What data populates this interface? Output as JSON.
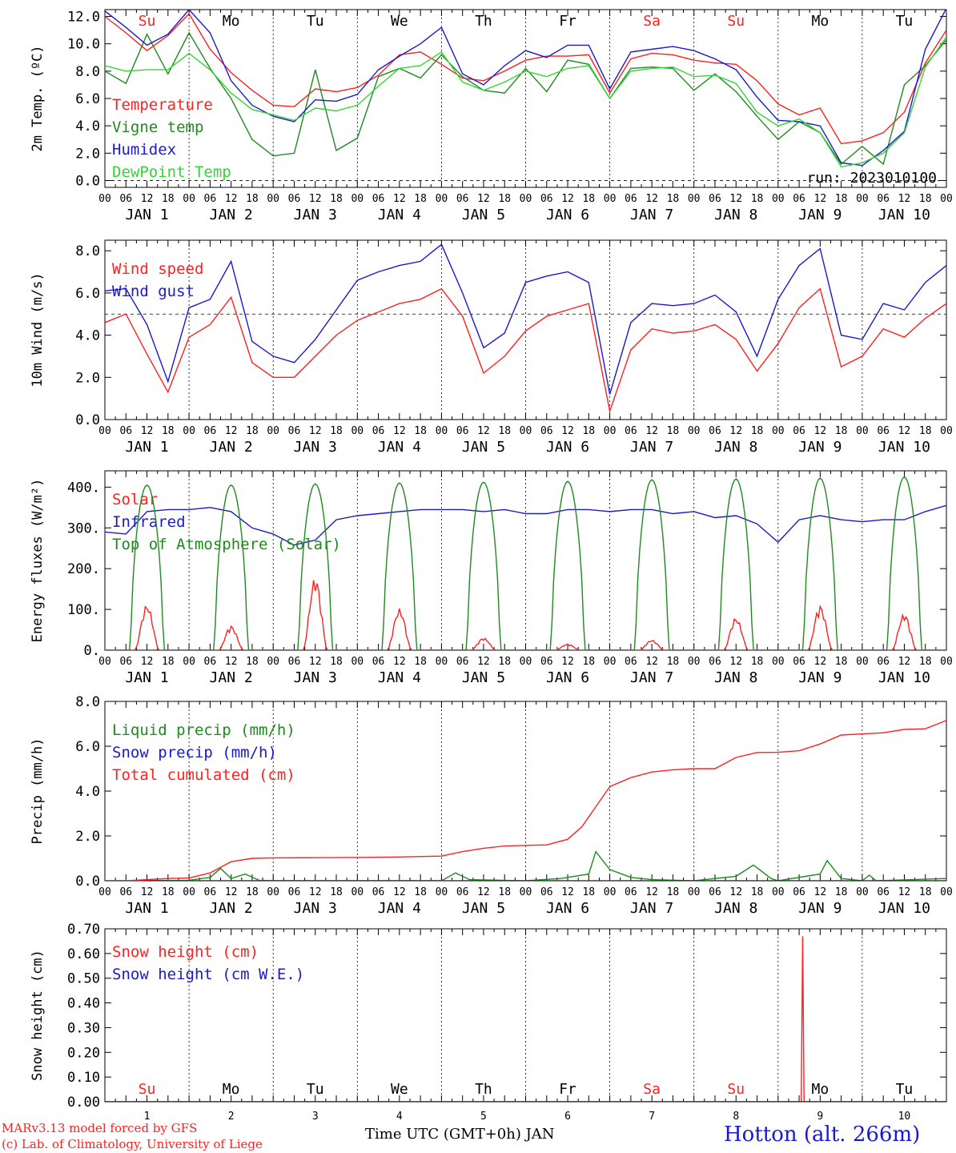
{
  "colors": {
    "red": "#ff2020",
    "green": "#1f8a1f",
    "lightgreen": "#33d633",
    "blue": "#1a1acc",
    "black": "#000000",
    "weekend": "#ff2020"
  },
  "days": [
    {
      "abbr": "Su",
      "weekend": true,
      "date": "JAN  1",
      "num": "1"
    },
    {
      "abbr": "Mo",
      "weekend": false,
      "date": "JAN  2",
      "num": "2"
    },
    {
      "abbr": "Tu",
      "weekend": false,
      "date": "JAN  3",
      "num": "3"
    },
    {
      "abbr": "We",
      "weekend": false,
      "date": "JAN  4",
      "num": "4"
    },
    {
      "abbr": "Th",
      "weekend": false,
      "date": "JAN  5",
      "num": "5"
    },
    {
      "abbr": "Fr",
      "weekend": false,
      "date": "JAN  6",
      "num": "6"
    },
    {
      "abbr": "Sa",
      "weekend": true,
      "date": "JAN  7",
      "num": "7"
    },
    {
      "abbr": "Su",
      "weekend": true,
      "date": "JAN  8",
      "num": "8"
    },
    {
      "abbr": "Mo",
      "weekend": false,
      "date": "JAN  9",
      "num": "9"
    },
    {
      "abbr": "Tu",
      "weekend": false,
      "date": "JAN 10",
      "num": "10"
    }
  ],
  "hour_ticks": [
    "00",
    "06",
    "12",
    "18"
  ],
  "run_label": "run: 2023010100",
  "xlabel": "Time UTC (GMT+0h) JAN",
  "footer": {
    "model": "MARv3.13 model forced by GFS",
    "lab": "(c) Lab. of Climatology, University of Liege",
    "station": "Hotton (alt. 266m)"
  },
  "chart_data": [
    {
      "type": "line",
      "ylabel": "2m Temp. (ºC)",
      "ylim": [
        -0.5,
        12.5
      ],
      "yticks": [
        "0.0",
        "2.0",
        "4.0",
        "6.0",
        "8.0",
        "10.0",
        "12.0"
      ],
      "ytick_values": [
        0,
        2,
        4,
        6,
        8,
        10,
        12
      ],
      "x_unit": "hours since JAN 1 00 UTC",
      "xlim": [
        0,
        240
      ],
      "ref_line": 0,
      "series": [
        {
          "name": "Temperature",
          "color": "red",
          "x": [
            0,
            6,
            12,
            18,
            24,
            30,
            36,
            42,
            48,
            54,
            60,
            66,
            72,
            78,
            84,
            90,
            96,
            102,
            108,
            114,
            120,
            126,
            132,
            138,
            144,
            150,
            156,
            162,
            168,
            174,
            180,
            186,
            192,
            198,
            204,
            210,
            216,
            222,
            228,
            234,
            240
          ],
          "y": [
            12.0,
            10.8,
            9.5,
            10.6,
            12.2,
            9.6,
            7.9,
            6.6,
            5.5,
            5.4,
            6.7,
            6.5,
            6.8,
            7.7,
            9.2,
            9.4,
            8.5,
            7.5,
            7.3,
            8.0,
            8.8,
            9.1,
            9.1,
            9.2,
            6.4,
            8.9,
            9.3,
            9.2,
            8.8,
            8.6,
            8.5,
            7.3,
            5.6,
            4.8,
            5.3,
            2.7,
            2.9,
            3.5,
            5.0,
            8.6,
            11.0
          ]
        },
        {
          "name": "Vigne temp",
          "color": "green",
          "x": [
            0,
            6,
            12,
            18,
            24,
            30,
            36,
            42,
            48,
            54,
            60,
            66,
            72,
            78,
            84,
            90,
            96,
            102,
            108,
            114,
            120,
            126,
            132,
            138,
            144,
            150,
            156,
            162,
            168,
            174,
            180,
            186,
            192,
            198,
            204,
            210,
            216,
            222,
            228,
            234,
            240
          ],
          "y": [
            8.0,
            7.1,
            10.7,
            7.8,
            10.8,
            8.2,
            6.0,
            3.0,
            1.8,
            2.0,
            8.1,
            2.2,
            3.1,
            7.6,
            8.2,
            7.5,
            9.2,
            7.6,
            6.6,
            6.4,
            8.2,
            6.5,
            8.8,
            8.5,
            6.0,
            8.2,
            8.3,
            8.2,
            6.6,
            7.8,
            6.5,
            4.7,
            3.0,
            4.3,
            3.5,
            1.2,
            2.5,
            1.2,
            7.0,
            8.4,
            10.3
          ]
        },
        {
          "name": "Humidex",
          "color": "blue",
          "x": [
            0,
            6,
            12,
            18,
            24,
            30,
            36,
            42,
            48,
            54,
            60,
            66,
            72,
            78,
            84,
            90,
            96,
            102,
            108,
            114,
            120,
            126,
            132,
            138,
            144,
            150,
            156,
            162,
            168,
            174,
            180,
            186,
            192,
            198,
            204,
            210,
            216,
            222,
            228,
            234,
            240
          ],
          "y": [
            12.4,
            11.2,
            9.9,
            10.7,
            12.5,
            10.8,
            7.3,
            5.5,
            4.7,
            4.3,
            5.9,
            5.8,
            6.3,
            8.1,
            9.1,
            10.0,
            11.2,
            7.8,
            7.0,
            8.4,
            9.5,
            9.0,
            9.9,
            9.9,
            6.7,
            9.4,
            9.6,
            9.8,
            9.5,
            8.9,
            8.1,
            6.1,
            4.4,
            4.3,
            4.0,
            1.3,
            1.1,
            2.2,
            3.6,
            9.6,
            12.6
          ]
        },
        {
          "name": "DewPoint Temp",
          "color": "lightgreen",
          "x": [
            0,
            6,
            12,
            18,
            24,
            30,
            36,
            42,
            48,
            54,
            60,
            66,
            72,
            78,
            84,
            90,
            96,
            102,
            108,
            114,
            120,
            126,
            132,
            138,
            144,
            150,
            156,
            162,
            168,
            174,
            180,
            186,
            192,
            198,
            204,
            210,
            216,
            222,
            228,
            234,
            240
          ],
          "y": [
            8.4,
            8.0,
            8.1,
            8.1,
            9.3,
            8.1,
            6.4,
            5.2,
            4.8,
            4.4,
            5.3,
            5.1,
            5.5,
            6.9,
            8.2,
            8.4,
            9.4,
            7.2,
            6.6,
            7.2,
            8.0,
            7.6,
            8.2,
            8.4,
            6.0,
            8.0,
            8.2,
            8.3,
            7.6,
            7.7,
            7.1,
            5.0,
            4.0,
            4.5,
            3.5,
            1.0,
            1.3,
            2.0,
            3.5,
            8.3,
            10.5
          ]
        }
      ]
    },
    {
      "type": "line",
      "ylabel": "10m Wind (m/s)",
      "ylim": [
        0,
        8.5
      ],
      "yticks": [
        "0.0",
        "2.0",
        "4.0",
        "6.0",
        "8.0"
      ],
      "ytick_values": [
        0,
        2,
        4,
        6,
        8
      ],
      "x_unit": "hours since JAN 1 00 UTC",
      "xlim": [
        0,
        240
      ],
      "ref_line": 5,
      "series": [
        {
          "name": "Wind speed",
          "color": "red",
          "x": [
            0,
            6,
            12,
            18,
            24,
            30,
            36,
            42,
            48,
            54,
            60,
            66,
            72,
            78,
            84,
            90,
            96,
            102,
            108,
            114,
            120,
            126,
            132,
            138,
            144,
            150,
            156,
            162,
            168,
            174,
            180,
            186,
            192,
            198,
            204,
            210,
            216,
            222,
            228,
            234,
            240
          ],
          "y": [
            4.6,
            5.0,
            3.1,
            1.3,
            3.9,
            4.5,
            5.8,
            2.7,
            2.0,
            2.0,
            3.0,
            4.0,
            4.7,
            5.1,
            5.5,
            5.7,
            6.2,
            4.9,
            2.2,
            3.0,
            4.2,
            4.9,
            5.2,
            5.5,
            0.4,
            3.3,
            4.3,
            4.1,
            4.2,
            4.5,
            3.8,
            2.3,
            3.6,
            5.3,
            6.2,
            2.5,
            3.0,
            4.3,
            3.9,
            4.8,
            5.5
          ]
        },
        {
          "name": "Wind gust",
          "color": "blue",
          "x": [
            0,
            6,
            12,
            18,
            24,
            30,
            36,
            42,
            48,
            54,
            60,
            66,
            72,
            78,
            84,
            90,
            96,
            102,
            108,
            114,
            120,
            126,
            132,
            138,
            144,
            150,
            156,
            162,
            168,
            174,
            180,
            186,
            192,
            198,
            204,
            210,
            216,
            222,
            228,
            234,
            240
          ],
          "y": [
            6.1,
            6.2,
            4.5,
            1.8,
            5.3,
            5.7,
            7.5,
            3.7,
            3.0,
            2.7,
            3.8,
            5.2,
            6.6,
            7.0,
            7.3,
            7.5,
            8.3,
            6.0,
            3.4,
            4.1,
            6.5,
            6.8,
            7.0,
            6.5,
            1.2,
            4.6,
            5.5,
            5.4,
            5.5,
            5.9,
            5.1,
            3.0,
            5.7,
            7.3,
            8.1,
            4.0,
            3.8,
            5.5,
            5.2,
            6.5,
            7.3
          ]
        }
      ]
    },
    {
      "type": "line",
      "ylabel": "Energy fluxes (W/m²)",
      "ylim": [
        0,
        440
      ],
      "yticks": [
        "0.",
        "100.",
        "200.",
        "300.",
        "400."
      ],
      "ytick_values": [
        0,
        100,
        200,
        300,
        400
      ],
      "x_unit": "hours since JAN 1 00 UTC",
      "xlim": [
        0,
        240
      ],
      "series": [
        {
          "name": "Solar",
          "color": "red",
          "daily_peak": [
            112,
            60,
            180,
            102,
            30,
            15,
            25,
            80,
            110,
            90
          ]
        },
        {
          "name": "Infrared",
          "color": "blue",
          "x": [
            0,
            6,
            12,
            18,
            24,
            30,
            36,
            42,
            48,
            54,
            60,
            66,
            72,
            78,
            84,
            90,
            96,
            102,
            108,
            114,
            120,
            126,
            132,
            138,
            144,
            150,
            156,
            162,
            168,
            174,
            180,
            186,
            192,
            198,
            204,
            210,
            216,
            222,
            228,
            234,
            240
          ],
          "y": [
            290,
            285,
            340,
            345,
            345,
            350,
            340,
            300,
            285,
            258,
            270,
            320,
            330,
            335,
            340,
            345,
            345,
            345,
            340,
            345,
            335,
            335,
            345,
            345,
            340,
            345,
            345,
            335,
            340,
            325,
            330,
            310,
            265,
            320,
            330,
            320,
            315,
            320,
            320,
            340,
            355
          ]
        },
        {
          "name": "Top of Atmosphere (Solar)",
          "color": "green",
          "daily_peak": [
            405,
            405,
            408,
            410,
            412,
            414,
            418,
            420,
            422,
            425
          ]
        }
      ]
    },
    {
      "type": "line",
      "ylabel": "Precip (mm/h)",
      "ylim": [
        0,
        8.0
      ],
      "yticks": [
        "0.0",
        "2.0",
        "4.0",
        "6.0",
        "8.0"
      ],
      "ytick_values": [
        0,
        2,
        4,
        6,
        8
      ],
      "x_unit": "hours since JAN 1 00 UTC",
      "xlim": [
        0,
        240
      ],
      "series": [
        {
          "name": "Liquid precip (mm/h)",
          "color": "green",
          "x": [
            0,
            24,
            30,
            33,
            36,
            40,
            44,
            48,
            96,
            100,
            104,
            120,
            130,
            138,
            140,
            144,
            150,
            156,
            168,
            180,
            185,
            190,
            192,
            204,
            206,
            210,
            216,
            218,
            220,
            240
          ],
          "y": [
            0,
            0.02,
            0.15,
            0.55,
            0.1,
            0.3,
            0.02,
            0.0,
            0.0,
            0.35,
            0.05,
            0.0,
            0.1,
            0.3,
            1.3,
            0.5,
            0.15,
            0.05,
            0.0,
            0.2,
            0.7,
            0.1,
            0.0,
            0.3,
            0.9,
            0.1,
            0.0,
            0.25,
            0.0,
            0.1
          ]
        },
        {
          "name": "Snow precip (mm/h)",
          "color": "blue",
          "x": [
            0,
            240
          ],
          "y": [
            0,
            0
          ]
        },
        {
          "name": "Total cumulated (cm)",
          "color": "red",
          "x": [
            0,
            6,
            12,
            18,
            24,
            30,
            36,
            42,
            48,
            60,
            72,
            84,
            96,
            102,
            108,
            114,
            120,
            126,
            132,
            136,
            140,
            144,
            150,
            156,
            162,
            168,
            174,
            180,
            186,
            192,
            198,
            204,
            210,
            216,
            222,
            228,
            234,
            240
          ],
          "y": [
            0,
            0.0,
            0.05,
            0.1,
            0.12,
            0.35,
            0.85,
            1.0,
            1.02,
            1.03,
            1.04,
            1.06,
            1.1,
            1.3,
            1.45,
            1.55,
            1.58,
            1.6,
            1.85,
            2.4,
            3.3,
            4.2,
            4.6,
            4.85,
            4.95,
            5.0,
            5.0,
            5.5,
            5.72,
            5.73,
            5.8,
            6.1,
            6.5,
            6.55,
            6.6,
            6.75,
            6.78,
            7.15
          ]
        }
      ]
    },
    {
      "type": "line",
      "ylabel": "Snow height (cm)",
      "ylim": [
        0,
        0.7
      ],
      "yticks": [
        "0.00",
        "0.10",
        "0.20",
        "0.30",
        "0.40",
        "0.50",
        "0.60",
        "0.70"
      ],
      "ytick_values": [
        0,
        0.1,
        0.2,
        0.3,
        0.4,
        0.5,
        0.6,
        0.7
      ],
      "x_unit": "hours since JAN 1 00 UTC",
      "xlim": [
        0,
        240
      ],
      "series": [
        {
          "name": "Snow height (cm)",
          "color": "red",
          "x": [
            0,
            198.6,
            199.0,
            199.4,
            240
          ],
          "y": [
            0,
            0,
            0.67,
            0,
            0
          ]
        },
        {
          "name": "Snow height (cm W.E.)",
          "color": "blue",
          "x": [
            0,
            240
          ],
          "y": [
            0,
            0
          ]
        }
      ]
    }
  ]
}
